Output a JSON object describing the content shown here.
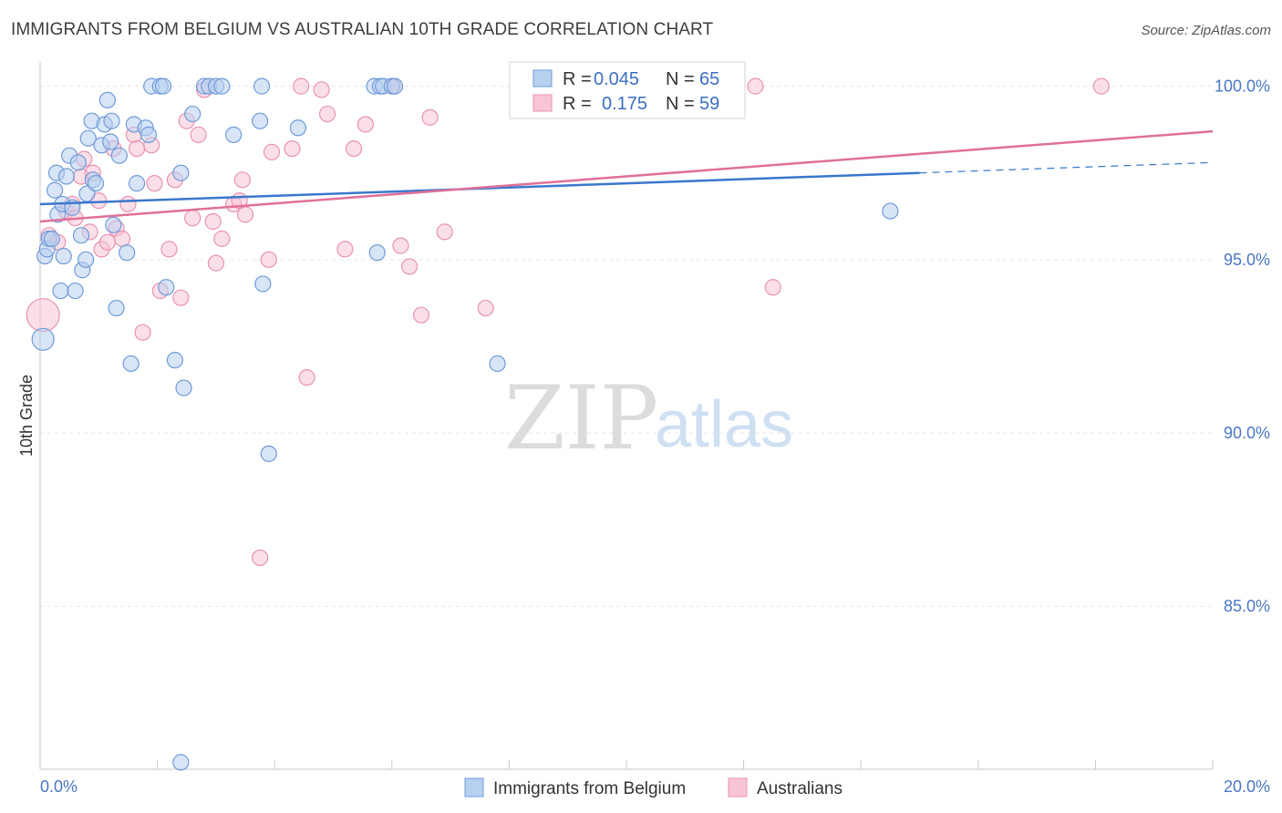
{
  "title": "IMMIGRANTS FROM BELGIUM VS AUSTRALIAN 10TH GRADE CORRELATION CHART",
  "source": "Source: ZipAtlas.com",
  "watermark": {
    "zip": "ZIP",
    "atlas": "atlas"
  },
  "legend": {
    "r_label": "R =",
    "n_label": "N =",
    "entries": [
      {
        "r": "0.045",
        "n": "65"
      },
      {
        "r": "0.175",
        "n": "59"
      }
    ]
  },
  "colors": {
    "blue_fill": "#b8d0f0",
    "blue_stroke": "#6f9bd8",
    "blue_line": "#3a77cc",
    "pink_fill": "#f7c5d6",
    "pink_stroke": "#e893b2",
    "pink_line": "#e0709a",
    "tick_text": "#4a77c4"
  },
  "chart_data": {
    "type": "scatter",
    "title": "IMMIGRANTS FROM BELGIUM VS AUSTRALIAN 10TH GRADE CORRELATION CHART",
    "xlabel": "",
    "ylabel": "10th Grade",
    "xlim": [
      0,
      20
    ],
    "ylim": [
      80.3,
      100.7
    ],
    "x_tick_labels": [
      {
        "value": 0,
        "label": "0.0%"
      },
      {
        "value": 20,
        "label": "20.0%"
      }
    ],
    "y_tick_labels": [
      {
        "value": 100,
        "label": "100.0%"
      },
      {
        "value": 95,
        "label": "95.0%"
      },
      {
        "value": 90,
        "label": "90.0%"
      },
      {
        "value": 85,
        "label": "85.0%"
      }
    ],
    "grid": true,
    "legend_position": "top-center",
    "series": [
      {
        "name": "Immigrants from Belgium",
        "color": "blue",
        "trend": {
          "x0": 0,
          "y0": 96.6,
          "x1": 15,
          "y1": 97.5,
          "dash_to_x": 20,
          "dash_to_y": 97.8
        },
        "points": [
          [
            0.05,
            92.7
          ],
          [
            0.08,
            95.1
          ],
          [
            0.12,
            95.3
          ],
          [
            0.15,
            95.6
          ],
          [
            0.2,
            95.6
          ],
          [
            0.25,
            97.0
          ],
          [
            0.28,
            97.5
          ],
          [
            0.3,
            96.3
          ],
          [
            0.35,
            94.1
          ],
          [
            0.38,
            96.6
          ],
          [
            0.4,
            95.1
          ],
          [
            0.45,
            97.4
          ],
          [
            0.5,
            98.0
          ],
          [
            0.55,
            96.5
          ],
          [
            0.6,
            94.1
          ],
          [
            0.65,
            97.8
          ],
          [
            0.7,
            95.7
          ],
          [
            0.72,
            94.7
          ],
          [
            0.78,
            95.0
          ],
          [
            0.8,
            96.9
          ],
          [
            0.82,
            98.5
          ],
          [
            0.88,
            99.0
          ],
          [
            0.9,
            97.3
          ],
          [
            0.95,
            97.2
          ],
          [
            1.05,
            98.3
          ],
          [
            1.1,
            98.9
          ],
          [
            1.2,
            98.4
          ],
          [
            1.22,
            99.0
          ],
          [
            1.25,
            96.0
          ],
          [
            1.3,
            93.6
          ],
          [
            1.35,
            98.0
          ],
          [
            1.15,
            99.6
          ],
          [
            1.48,
            95.2
          ],
          [
            1.55,
            92.0
          ],
          [
            1.6,
            98.9
          ],
          [
            1.65,
            97.2
          ],
          [
            1.8,
            98.8
          ],
          [
            1.85,
            98.6
          ],
          [
            1.9,
            100.0
          ],
          [
            2.05,
            100.0
          ],
          [
            2.1,
            100.0
          ],
          [
            2.15,
            94.2
          ],
          [
            2.3,
            92.1
          ],
          [
            2.4,
            97.5
          ],
          [
            2.45,
            91.3
          ],
          [
            2.6,
            99.2
          ],
          [
            2.8,
            100.0
          ],
          [
            2.88,
            100.0
          ],
          [
            3.0,
            100.0
          ],
          [
            3.1,
            100.0
          ],
          [
            3.3,
            98.6
          ],
          [
            3.75,
            99.0
          ],
          [
            3.78,
            100.0
          ],
          [
            3.8,
            94.3
          ],
          [
            3.9,
            89.4
          ],
          [
            4.4,
            98.8
          ],
          [
            5.7,
            100.0
          ],
          [
            5.75,
            95.2
          ],
          [
            5.8,
            100.0
          ],
          [
            5.85,
            100.0
          ],
          [
            6.0,
            100.0
          ],
          [
            6.05,
            100.0
          ],
          [
            7.8,
            92.0
          ],
          [
            2.4,
            80.5
          ],
          [
            14.5,
            96.4
          ]
        ]
      },
      {
        "name": "Australians",
        "color": "pink",
        "trend": {
          "x0": 0,
          "y0": 96.1,
          "x1": 20,
          "y1": 98.7
        },
        "points": [
          [
            0.05,
            93.4
          ],
          [
            0.15,
            95.7
          ],
          [
            0.3,
            95.5
          ],
          [
            0.45,
            96.4
          ],
          [
            0.55,
            96.6
          ],
          [
            0.6,
            96.2
          ],
          [
            0.7,
            97.4
          ],
          [
            0.75,
            97.9
          ],
          [
            0.85,
            95.8
          ],
          [
            0.9,
            97.5
          ],
          [
            1.0,
            96.7
          ],
          [
            1.05,
            95.3
          ],
          [
            1.15,
            95.5
          ],
          [
            1.25,
            98.2
          ],
          [
            1.3,
            95.9
          ],
          [
            1.4,
            95.6
          ],
          [
            1.5,
            96.6
          ],
          [
            1.6,
            98.6
          ],
          [
            1.65,
            98.2
          ],
          [
            1.75,
            92.9
          ],
          [
            1.9,
            98.3
          ],
          [
            1.95,
            97.2
          ],
          [
            2.05,
            94.1
          ],
          [
            2.2,
            95.3
          ],
          [
            2.3,
            97.3
          ],
          [
            2.4,
            93.9
          ],
          [
            2.5,
            99.0
          ],
          [
            2.6,
            96.2
          ],
          [
            2.7,
            98.6
          ],
          [
            2.8,
            99.9
          ],
          [
            2.95,
            96.1
          ],
          [
            3.0,
            94.9
          ],
          [
            3.1,
            95.6
          ],
          [
            3.3,
            96.6
          ],
          [
            3.4,
            96.7
          ],
          [
            3.45,
            97.3
          ],
          [
            3.5,
            96.3
          ],
          [
            3.75,
            86.4
          ],
          [
            3.9,
            95.0
          ],
          [
            3.95,
            98.1
          ],
          [
            4.3,
            98.2
          ],
          [
            4.45,
            100.0
          ],
          [
            4.55,
            91.6
          ],
          [
            4.8,
            99.9
          ],
          [
            4.9,
            99.2
          ],
          [
            5.2,
            95.3
          ],
          [
            5.35,
            98.2
          ],
          [
            5.55,
            98.9
          ],
          [
            6.0,
            100.0
          ],
          [
            6.05,
            100.0
          ],
          [
            6.15,
            95.4
          ],
          [
            6.3,
            94.8
          ],
          [
            6.5,
            93.4
          ],
          [
            6.65,
            99.1
          ],
          [
            6.9,
            95.8
          ],
          [
            7.6,
            93.6
          ],
          [
            12.2,
            100.0
          ],
          [
            12.5,
            94.2
          ],
          [
            18.1,
            100.0
          ]
        ]
      }
    ]
  },
  "bottom_legend": [
    "Immigrants from Belgium",
    "Australians"
  ]
}
